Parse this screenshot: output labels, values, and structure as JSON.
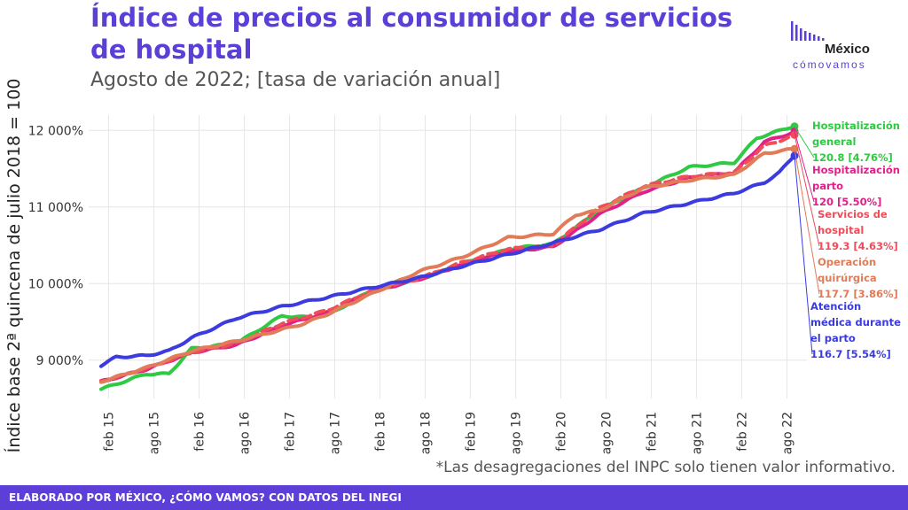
{
  "header": {
    "title": "Índice de precios al consumidor de servicios de hospital",
    "subtitle": "Agosto de 2022; [tasa de variación anual]"
  },
  "logo": {
    "brand": "México",
    "tagline": "cómovamos"
  },
  "footnote": "*Las desagregaciones del INPC solo tienen valor informativo.",
  "footer": "ELABORADO POR MÉXICO, ¿CÓMO VAMOS? CON DATOS DEL INEGI",
  "colors": {
    "accent": "#5b3fd6",
    "grid": "#e6e6e6"
  },
  "chart_data": {
    "type": "line",
    "ylabel": "Índice base 2ª quincena de julio 2018 = 100",
    "xlabel": "",
    "ylim": [
      8500,
      12200
    ],
    "yticks": [
      9000,
      10000,
      11000,
      12000
    ],
    "ytick_labels": [
      "9 000%",
      "10 000%",
      "11 000%",
      "12 000%"
    ],
    "xticks": [
      "feb 15",
      "ago 15",
      "feb 16",
      "ago 16",
      "feb 17",
      "ago 17",
      "feb 18",
      "ago 18",
      "feb 19",
      "ago 19",
      "feb 20",
      "ago 20",
      "feb 21",
      "ago 21",
      "feb 22",
      "ago 22"
    ],
    "x_start": "ene 15",
    "grid": true,
    "series": [
      {
        "name": "Hospitalización general",
        "label": "120.8 [4.76%]",
        "color": "#2fc943",
        "dashed": false,
        "anchors": [
          [
            0,
            8620
          ],
          [
            6,
            8820
          ],
          [
            9,
            8820
          ],
          [
            12,
            9150
          ],
          [
            18,
            9220
          ],
          [
            24,
            9580
          ],
          [
            27,
            9560
          ],
          [
            30,
            9580
          ],
          [
            36,
            9920
          ],
          [
            42,
            10050
          ],
          [
            48,
            10250
          ],
          [
            54,
            10450
          ],
          [
            60,
            10520
          ],
          [
            66,
            10950
          ],
          [
            72,
            11250
          ],
          [
            78,
            11520
          ],
          [
            84,
            11580
          ],
          [
            87,
            11900
          ],
          [
            92,
            12060
          ]
        ]
      },
      {
        "name": "Hospitalización parto",
        "label": "120 [5.50%]",
        "color": "#e0218a",
        "dashed": false,
        "anchors": [
          [
            0,
            8720
          ],
          [
            6,
            8880
          ],
          [
            12,
            9100
          ],
          [
            18,
            9200
          ],
          [
            24,
            9450
          ],
          [
            30,
            9620
          ],
          [
            36,
            9900
          ],
          [
            42,
            10050
          ],
          [
            48,
            10250
          ],
          [
            54,
            10420
          ],
          [
            60,
            10480
          ],
          [
            66,
            10900
          ],
          [
            72,
            11200
          ],
          [
            78,
            11380
          ],
          [
            84,
            11450
          ],
          [
            88,
            11850
          ],
          [
            92,
            11980
          ]
        ]
      },
      {
        "name": "Servicios de hospital",
        "label": "119.3 [4.63%]",
        "color": "#ef4d5a",
        "dashed": true,
        "anchors": [
          [
            0,
            8720
          ],
          [
            6,
            8890
          ],
          [
            12,
            9100
          ],
          [
            18,
            9220
          ],
          [
            24,
            9480
          ],
          [
            30,
            9650
          ],
          [
            36,
            9910
          ],
          [
            42,
            10060
          ],
          [
            48,
            10280
          ],
          [
            54,
            10450
          ],
          [
            60,
            10500
          ],
          [
            66,
            10980
          ],
          [
            72,
            11270
          ],
          [
            78,
            11400
          ],
          [
            84,
            11450
          ],
          [
            88,
            11800
          ],
          [
            92,
            11930
          ]
        ]
      },
      {
        "name": "Operación quirúrgica",
        "label": "117.7 [3.86%]",
        "color": "#e27b58",
        "dashed": false,
        "anchors": [
          [
            0,
            8720
          ],
          [
            6,
            8900
          ],
          [
            12,
            9120
          ],
          [
            18,
            9250
          ],
          [
            24,
            9400
          ],
          [
            27,
            9480
          ],
          [
            30,
            9600
          ],
          [
            36,
            9870
          ],
          [
            42,
            10150
          ],
          [
            48,
            10350
          ],
          [
            54,
            10600
          ],
          [
            60,
            10650
          ],
          [
            63,
            10900
          ],
          [
            66,
            10950
          ],
          [
            72,
            11250
          ],
          [
            78,
            11350
          ],
          [
            84,
            11420
          ],
          [
            88,
            11700
          ],
          [
            92,
            11760
          ]
        ]
      },
      {
        "name": "Atención médica durante el parto",
        "label": "116.7 [5.54%]",
        "color": "#3b3be0",
        "dashed": false,
        "anchors": [
          [
            0,
            8930
          ],
          [
            2,
            9040
          ],
          [
            6,
            9060
          ],
          [
            9,
            9120
          ],
          [
            12,
            9290
          ],
          [
            18,
            9550
          ],
          [
            24,
            9700
          ],
          [
            30,
            9820
          ],
          [
            36,
            9950
          ],
          [
            42,
            10070
          ],
          [
            48,
            10230
          ],
          [
            54,
            10380
          ],
          [
            60,
            10530
          ],
          [
            66,
            10700
          ],
          [
            72,
            10920
          ],
          [
            78,
            11050
          ],
          [
            84,
            11180
          ],
          [
            88,
            11320
          ],
          [
            90,
            11450
          ],
          [
            92,
            11680
          ]
        ]
      }
    ]
  }
}
